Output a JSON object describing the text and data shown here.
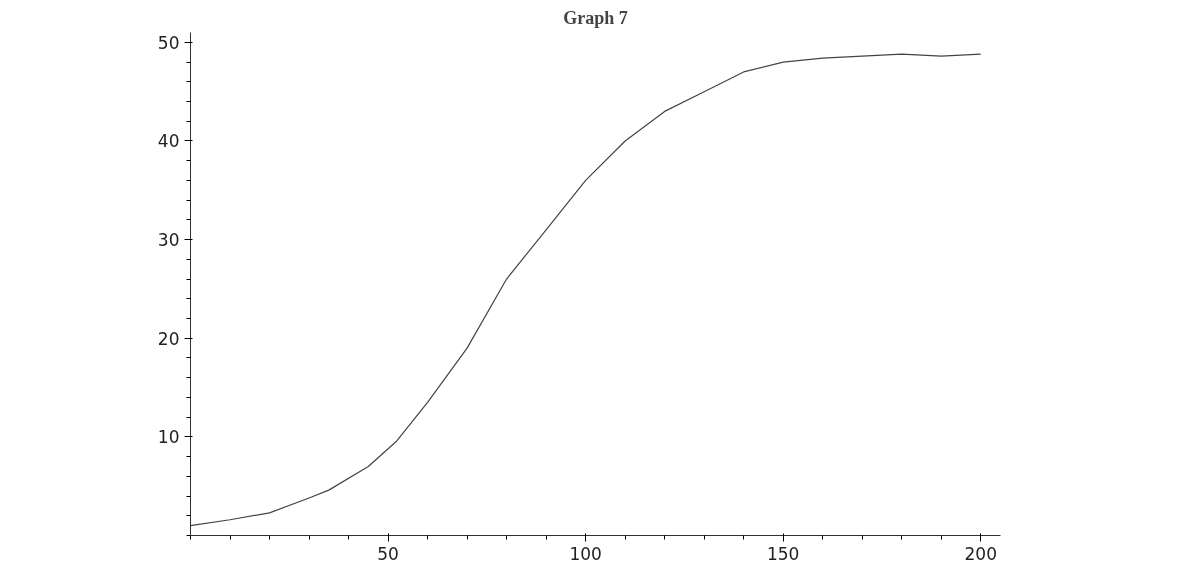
{
  "chart_data": {
    "type": "line",
    "title": "Graph 7",
    "x": [
      0,
      10,
      20,
      30,
      35,
      45,
      52,
      60,
      70,
      80,
      90,
      100,
      110,
      120,
      130,
      140,
      150,
      160,
      170,
      180,
      190,
      200
    ],
    "series": [
      {
        "color": "#444444",
        "values": [
          1,
          1.6,
          2.3,
          3.8,
          4.6,
          7,
          9.5,
          13.5,
          19,
          26,
          31,
          36,
          40,
          43,
          45,
          47,
          48,
          48.4,
          48.6,
          48.8,
          48.6,
          48.8
        ]
      }
    ],
    "xlim": [
      0,
      205
    ],
    "ylim": [
      0,
      51
    ],
    "xticks": [
      50,
      100,
      150,
      200
    ],
    "yticks": [
      10,
      20,
      30,
      40,
      50
    ],
    "grid": false,
    "marker": "none",
    "line_style": "solid"
  }
}
